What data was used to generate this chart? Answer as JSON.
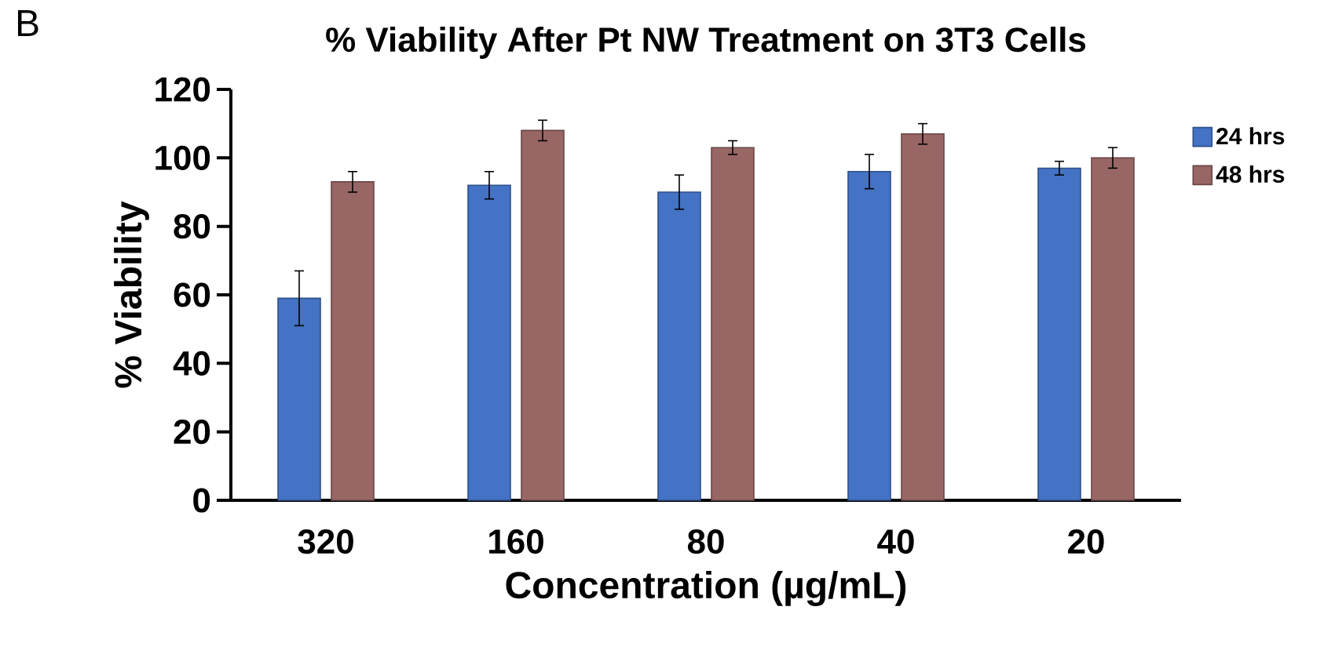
{
  "chart_data": {
    "type": "bar",
    "title": "% Viability After Pt NW Treatment on 3T3 Cells",
    "xlabel": "Concentration (µg/mL)",
    "ylabel": "% Viability",
    "annotations": [
      "B"
    ],
    "categories": [
      "320",
      "160",
      "80",
      "40",
      "20"
    ],
    "series": [
      {
        "name": "24 hrs",
        "color": "#4472c4",
        "values": [
          59,
          92,
          90,
          96,
          97
        ],
        "errors": [
          8,
          4,
          5,
          5,
          2
        ]
      },
      {
        "name": "48 hrs",
        "color": "#996666",
        "values": [
          93,
          108,
          103,
          107,
          100
        ],
        "errors": [
          3,
          3,
          2,
          3,
          3
        ]
      }
    ],
    "ylim": [
      0,
      120
    ],
    "yticks": [
      0,
      20,
      40,
      60,
      80,
      100,
      120
    ],
    "legend": "right"
  }
}
